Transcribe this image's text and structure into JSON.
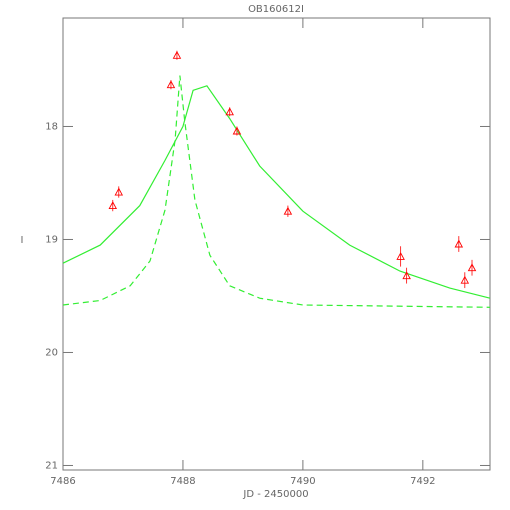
{
  "chart_data": {
    "type": "scatter",
    "title": "OB160612I",
    "x_label": "JD - 2450000",
    "y_label": "I",
    "xlim": [
      7486,
      7493.12
    ],
    "ylim": [
      21.04,
      17.04
    ],
    "xticks": [
      7486,
      7488,
      7490,
      7492
    ],
    "yticks": [
      18,
      19,
      20,
      21
    ],
    "points": {
      "color": "#ff0000",
      "x": [
        7486.83,
        7486.93,
        7487.8,
        7487.9,
        7488.78,
        7488.9,
        7489.75,
        7491.63,
        7491.73,
        7492.6,
        7492.7,
        7492.82
      ],
      "y": [
        18.7,
        18.58,
        17.63,
        17.37,
        17.87,
        18.04,
        18.75,
        19.15,
        19.32,
        19.04,
        19.36,
        19.25
      ],
      "errors": [
        0.05,
        0.05,
        0.04,
        0.04,
        0.04,
        0.04,
        0.05,
        0.09,
        0.07,
        0.07,
        0.07,
        0.07
      ]
    },
    "models": [
      {
        "style": "solid",
        "color": "#33ee33",
        "x": [
          7486.0,
          7486.62,
          7487.28,
          7487.7,
          7488.0,
          7488.17,
          7488.4,
          7488.78,
          7489.28,
          7490.0,
          7490.78,
          7491.62,
          7492.45,
          7493.12
        ],
        "y": [
          19.21,
          19.05,
          18.7,
          18.3,
          18.0,
          17.68,
          17.64,
          17.93,
          18.35,
          18.75,
          19.05,
          19.28,
          19.43,
          19.52
        ]
      },
      {
        "style": "dashed",
        "color": "#33ee33",
        "x": [
          7486.0,
          7486.62,
          7487.12,
          7487.45,
          7487.7,
          7487.87,
          7487.95,
          7488.03,
          7488.2,
          7488.45,
          7488.78,
          7489.28,
          7490.0,
          7493.12
        ],
        "y": [
          19.58,
          19.54,
          19.41,
          19.19,
          18.74,
          18.12,
          17.55,
          17.95,
          18.65,
          19.14,
          19.41,
          19.52,
          19.58,
          19.6
        ]
      }
    ]
  }
}
